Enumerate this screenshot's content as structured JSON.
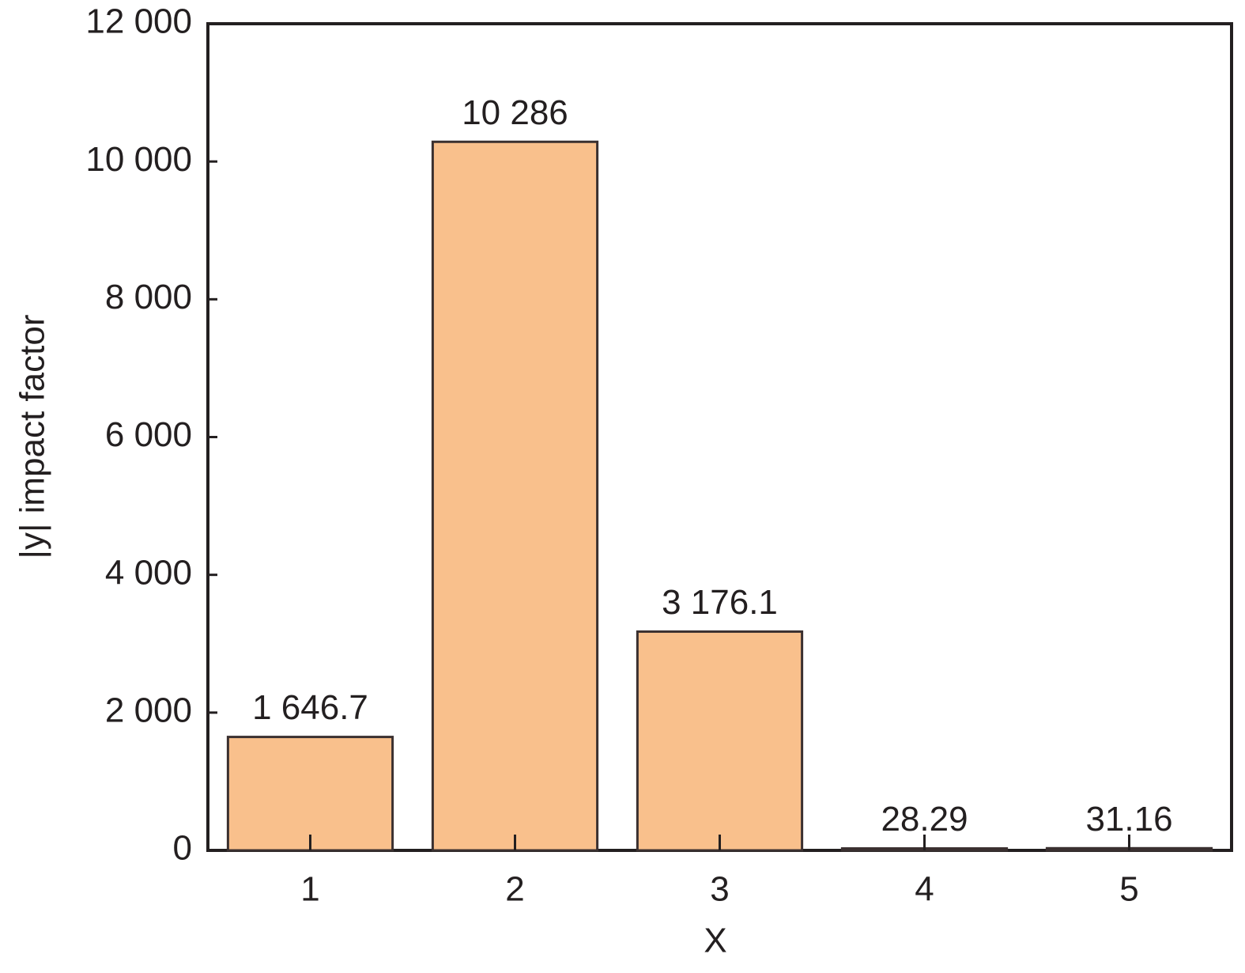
{
  "chart_data": {
    "type": "bar",
    "x_label": "X",
    "y_label": "|y| impact factor",
    "categories": [
      "1",
      "2",
      "3",
      "4",
      "5"
    ],
    "values": [
      1646.7,
      10286,
      3176.1,
      28.29,
      31.16
    ],
    "value_labels": [
      "1 646.7",
      "10 286",
      "3 176.1",
      "28.29",
      "31.16"
    ],
    "color": "#f9c08c",
    "ylim": [
      0,
      12000
    ],
    "yticks": [
      0,
      {
        "value": 2000,
        "label": "2 000"
      },
      {
        "value": 4000,
        "label": "4 000"
      },
      {
        "value": 6000,
        "label": "6 000"
      },
      {
        "value": 8000,
        "label": "8 000"
      },
      {
        "value": 10000,
        "label": "10 000"
      },
      {
        "value": 12000,
        "label": "12 000"
      }
    ],
    "grid": false
  }
}
